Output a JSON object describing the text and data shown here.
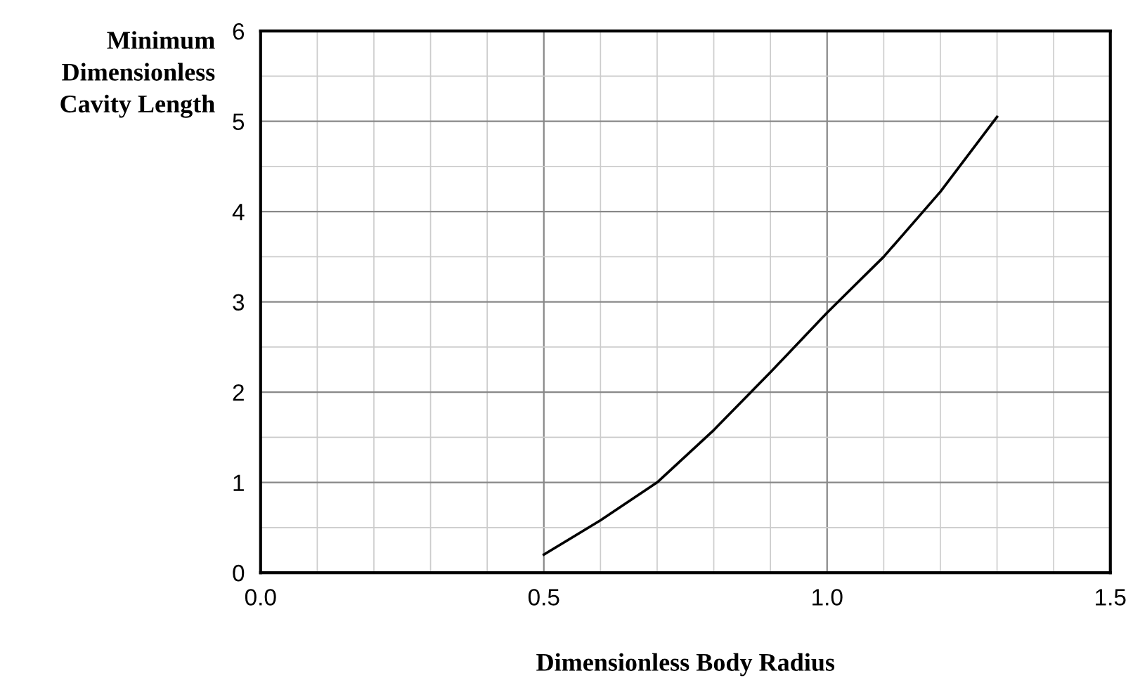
{
  "chart_data": {
    "type": "line",
    "xlabel": "Dimensionless Body Radius",
    "ylabel": "Minimum\nDimensionless\nCavity Length",
    "x": [
      0.5,
      0.6,
      0.7,
      0.8,
      0.9,
      1.0,
      1.1,
      1.2,
      1.3
    ],
    "series": [
      {
        "color": "#000000",
        "values": [
          0.2,
          0.58,
          1.0,
          1.58,
          2.22,
          2.88,
          3.5,
          4.22,
          5.05
        ]
      }
    ],
    "xlim": [
      0,
      1.5
    ],
    "xticks": [
      {
        "value": 0,
        "label": "0.0"
      },
      0.5,
      {
        "value": 1,
        "label": "1.0"
      },
      1.5
    ],
    "ylim": [
      0,
      6
    ],
    "yticks": [
      0,
      1,
      2,
      3,
      4,
      5,
      6
    ],
    "grid": true,
    "marker": "none",
    "line_style": "solid"
  }
}
